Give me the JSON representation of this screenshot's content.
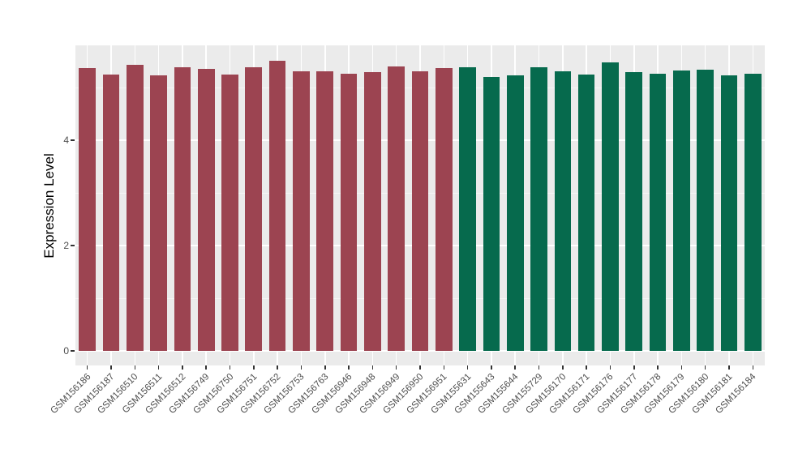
{
  "chart_data": {
    "type": "bar",
    "title": "",
    "xlabel": "",
    "ylabel": "Expression Level",
    "ylim": [
      -0.28,
      5.8
    ],
    "yticks": [
      0,
      2,
      4
    ],
    "minor_yticks": [
      1,
      3,
      5
    ],
    "grid": "on",
    "legend": "none",
    "categories": [
      "GSM156186",
      "GSM156187",
      "GSM156510",
      "GSM156511",
      "GSM156512",
      "GSM156749",
      "GSM156750",
      "GSM156751",
      "GSM156752",
      "GSM156753",
      "GSM156763",
      "GSM156946",
      "GSM156948",
      "GSM156949",
      "GSM156950",
      "GSM156951",
      "GSM155631",
      "GSM155643",
      "GSM155644",
      "GSM155729",
      "GSM156170",
      "GSM156171",
      "GSM156176",
      "GSM156177",
      "GSM156178",
      "GSM156179",
      "GSM156180",
      "GSM156181",
      "GSM156184"
    ],
    "values": [
      5.37,
      5.25,
      5.43,
      5.23,
      5.38,
      5.35,
      5.25,
      5.38,
      5.51,
      5.31,
      5.31,
      5.26,
      5.29,
      5.4,
      5.31,
      5.37,
      5.38,
      5.2,
      5.23,
      5.38,
      5.31,
      5.25,
      5.48,
      5.29,
      5.26,
      5.32,
      5.34,
      5.23,
      5.26
    ],
    "bar_groups": [
      "red",
      "red",
      "red",
      "red",
      "red",
      "red",
      "red",
      "red",
      "red",
      "red",
      "red",
      "red",
      "red",
      "red",
      "red",
      "red",
      "green",
      "green",
      "green",
      "green",
      "green",
      "green",
      "green",
      "green",
      "green",
      "green",
      "green",
      "green",
      "green"
    ],
    "group_colors": {
      "red": "#9c4451",
      "green": "#066a4d"
    },
    "style": {
      "panel_background": "#ebebeb",
      "gridline_color": "#ffffff",
      "tick_color": "#333333",
      "axis_text_color": "#4d4d4d",
      "axis_title_color": "#000000",
      "figure_background": "#ffffff"
    }
  }
}
